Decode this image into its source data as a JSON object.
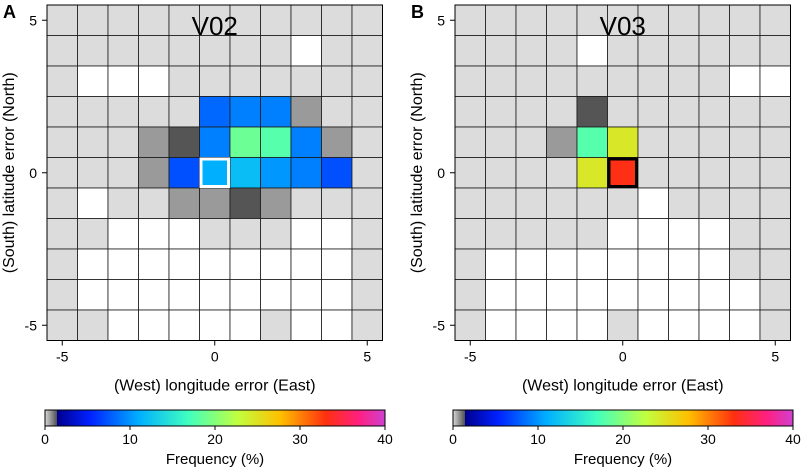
{
  "chart_data": [
    {
      "type": "heatmap",
      "panel_label": "A",
      "title": "V02",
      "xlabel": "(West) longitude error (East)",
      "ylabel": "(South) latitude error (North)",
      "x_range": [
        -5.5,
        5.5
      ],
      "y_range": [
        -5.5,
        5.5
      ],
      "x_ticks": [
        -5,
        0,
        5
      ],
      "y_ticks": [
        5,
        0,
        -5
      ],
      "x_tick_labels": [
        "-5",
        "0",
        "5"
      ],
      "y_tick_labels": [
        "5",
        "0",
        "-5"
      ],
      "value_grid_note": "rows ordered from top (y=5) to bottom (y=-5), columns from x=-5 to x=5; values are frequency (%); 0 = white, -1 = light grey, -2 = mid grey, -3 = dark grey",
      "grid": [
        [
          -1,
          -1,
          -1,
          -1,
          -1,
          -1,
          -1,
          -1,
          -1,
          -1,
          -1
        ],
        [
          -1,
          -1,
          -1,
          -1,
          -1,
          -1,
          -1,
          -1,
          0,
          -1,
          -1
        ],
        [
          -1,
          0,
          0,
          0,
          -1,
          -1,
          -1,
          -1,
          -1,
          -1,
          -1
        ],
        [
          -1,
          -1,
          -1,
          -1,
          -1,
          7,
          8,
          8,
          -2,
          -1,
          -1
        ],
        [
          -1,
          -1,
          -1,
          -2,
          -3,
          8,
          18,
          17,
          8,
          -2,
          -1
        ],
        [
          -1,
          -1,
          -1,
          -2,
          6,
          10,
          11,
          9,
          8,
          6,
          -1
        ],
        [
          -1,
          0,
          -1,
          -1,
          -2,
          -2,
          -3,
          -2,
          -1,
          -1,
          -1
        ],
        [
          -1,
          -1,
          0,
          0,
          0,
          -1,
          -1,
          -1,
          0,
          0,
          -1
        ],
        [
          -1,
          0,
          0,
          0,
          0,
          0,
          0,
          0,
          0,
          0,
          -1
        ],
        [
          -1,
          0,
          0,
          0,
          0,
          0,
          0,
          0,
          0,
          0,
          -1
        ],
        [
          -1,
          -1,
          0,
          0,
          0,
          0,
          0,
          -1,
          0,
          0,
          -1
        ]
      ],
      "highlight_cell": {
        "x": 0,
        "y": 0,
        "color": "#ffffff"
      },
      "colorbar": {
        "label": "Frequency (%)",
        "min": 0,
        "max": 40,
        "ticks": [
          "0",
          "10",
          "20",
          "30",
          "40"
        ]
      }
    },
    {
      "type": "heatmap",
      "panel_label": "B",
      "title": "V03",
      "xlabel": "(West) longitude error (East)",
      "ylabel": "(South) latitude error (North)",
      "x_range": [
        -5.5,
        5.5
      ],
      "y_range": [
        -5.5,
        5.5
      ],
      "x_ticks": [
        -5,
        0,
        5
      ],
      "y_ticks": [
        5,
        0,
        -5
      ],
      "x_tick_labels": [
        "-5",
        "0",
        "5"
      ],
      "y_tick_labels": [
        "5",
        "0",
        "-5"
      ],
      "value_grid_note": "rows ordered from top (y=5) to bottom (y=-5), columns from x=-5 to x=5; values are frequency (%); 0 = white, -1 = light grey, -2 = mid grey, -3 = dark grey",
      "grid": [
        [
          -1,
          -1,
          -1,
          -1,
          -1,
          -1,
          -1,
          -1,
          -1,
          -1,
          -1
        ],
        [
          -1,
          -1,
          -1,
          -1,
          0,
          -1,
          -1,
          -1,
          -1,
          -1,
          -1
        ],
        [
          -1,
          -1,
          -1,
          -1,
          -1,
          -1,
          -1,
          -1,
          -1,
          0,
          0
        ],
        [
          -1,
          -1,
          -1,
          -1,
          -3,
          -1,
          -1,
          -1,
          -1,
          -1,
          -1
        ],
        [
          -1,
          -1,
          -1,
          -2,
          17,
          24,
          -1,
          -1,
          -1,
          -1,
          -1
        ],
        [
          -1,
          -1,
          -1,
          -1,
          24,
          33,
          -1,
          -1,
          -1,
          -1,
          -1
        ],
        [
          -1,
          -1,
          -1,
          -1,
          -1,
          -1,
          0,
          -1,
          -1,
          -1,
          -1
        ],
        [
          -1,
          -1,
          -1,
          -1,
          -1,
          0,
          0,
          0,
          0,
          -1,
          -1
        ],
        [
          -1,
          0,
          0,
          0,
          0,
          0,
          0,
          0,
          0,
          -1,
          -1
        ],
        [
          -1,
          0,
          0,
          0,
          0,
          0,
          0,
          0,
          0,
          0,
          -1
        ],
        [
          -1,
          0,
          0,
          0,
          0,
          -1,
          0,
          0,
          0,
          0,
          -1
        ]
      ],
      "highlight_cell": {
        "x": 0,
        "y": 0,
        "color": "#000000"
      },
      "colorbar": {
        "label": "Frequency (%)",
        "min": 0,
        "max": 40,
        "ticks": [
          "0",
          "10",
          "20",
          "30",
          "40"
        ]
      }
    }
  ]
}
